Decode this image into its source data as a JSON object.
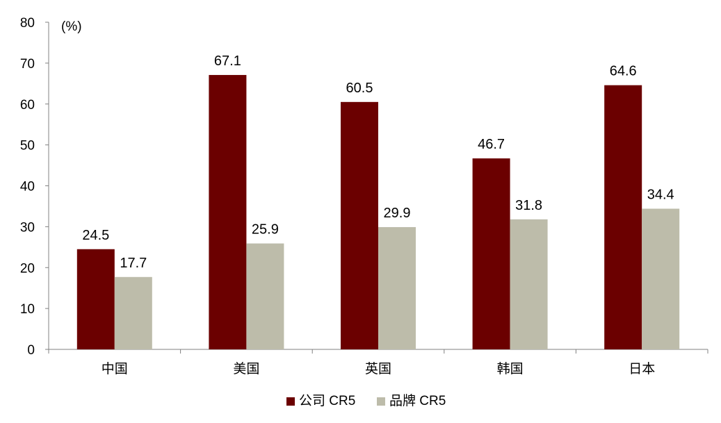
{
  "chart_data": {
    "type": "bar",
    "unit_label": "(%)",
    "categories": [
      "中国",
      "美国",
      "英国",
      "韩国",
      "日本"
    ],
    "series": [
      {
        "name": "公司 CR5",
        "values": [
          24.5,
          67.1,
          60.5,
          46.7,
          64.6
        ],
        "color": "#6b0000"
      },
      {
        "name": "品牌 CR5",
        "values": [
          17.7,
          25.9,
          29.9,
          31.8,
          34.4
        ],
        "color": "#bdbcaa"
      }
    ],
    "ylim": [
      0,
      80
    ],
    "yticks": [
      0,
      10,
      20,
      30,
      40,
      50,
      60,
      70,
      80
    ],
    "grid": false,
    "legend_position": "bottom-center",
    "data_labels": true
  }
}
